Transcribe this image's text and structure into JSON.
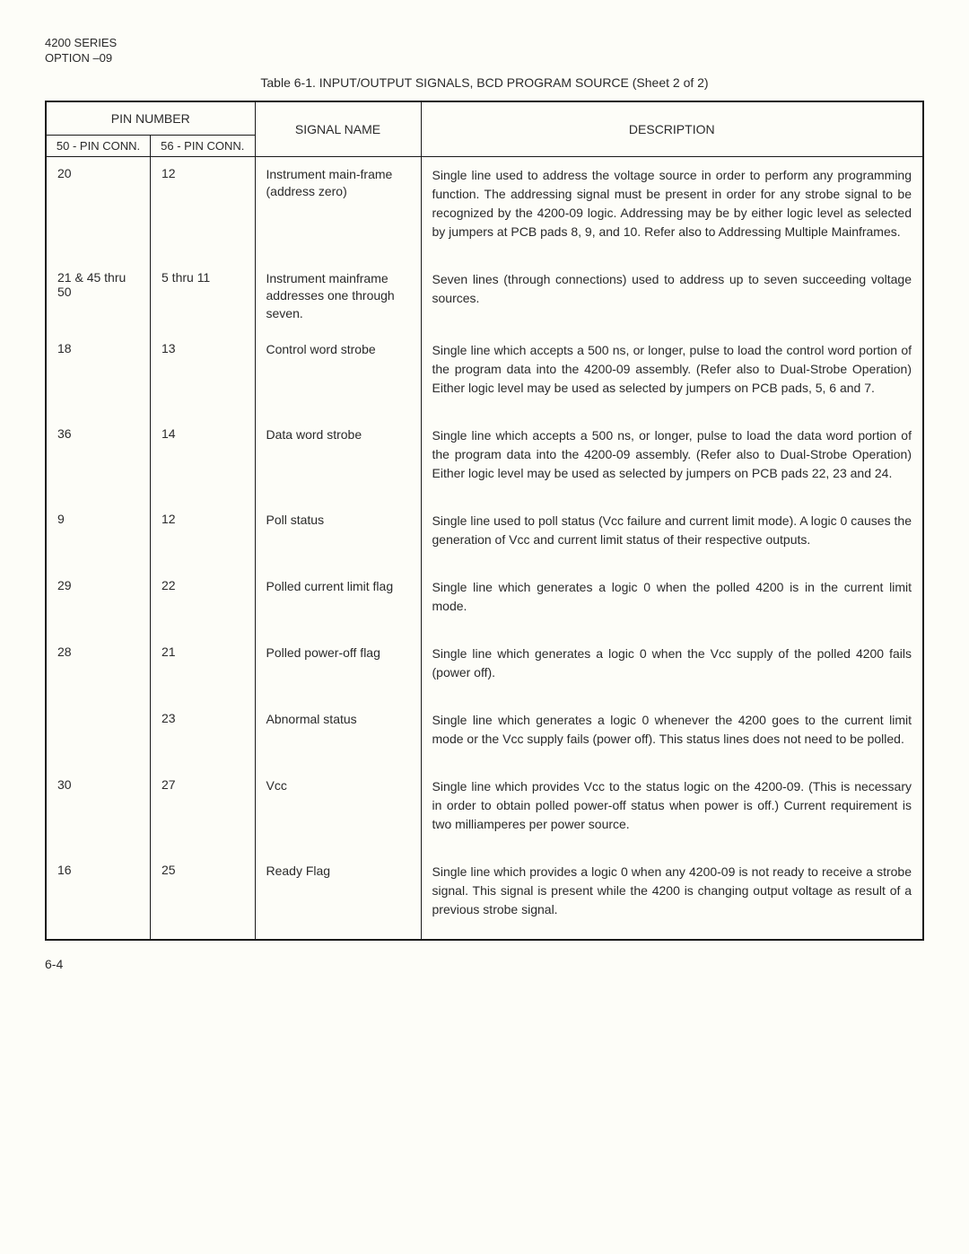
{
  "header": {
    "line1": "4200 SERIES",
    "line2": "OPTION –09"
  },
  "caption": "Table 6-1.   INPUT/OUTPUT SIGNALS, BCD PROGRAM SOURCE (Sheet 2 of 2)",
  "columns": {
    "pin_number": "PIN NUMBER",
    "pin50": "50 - PIN CONN.",
    "pin56": "56 - PIN CONN.",
    "signal": "SIGNAL NAME",
    "desc": "DESCRIPTION"
  },
  "rows": [
    {
      "pin50": "20",
      "pin56": "12",
      "signal": "Instrument main-frame (address zero)",
      "desc": "Single line used to address the voltage source in order to perform any programming function. The addressing signal must be present in order for any strobe signal to be recognized by the 4200-09 logic. Addressing may be by either logic level as selected by jumpers at PCB pads 8, 9, and 10.      Refer also to Addressing Multiple Mainframes."
    },
    {
      "pin50": "21 & 45 thru 50",
      "pin56": "5 thru 11",
      "signal": "Instrument mainframe addresses one through seven.",
      "desc": "Seven lines (through connections) used to address up to seven succeeding voltage sources."
    },
    {
      "pin50": "18",
      "pin56": "13",
      "signal": "Control word strobe",
      "desc": "Single line which accepts a 500 ns, or longer, pulse to load the control word portion of the program data into the 4200-09 assembly.  (Refer also to Dual-Strobe Operation)    Either logic level may be used as selected by jumpers on PCB pads, 5, 6 and 7."
    },
    {
      "pin50": "36",
      "pin56": "14",
      "signal": "Data word strobe",
      "desc": "Single line which accepts a 500 ns, or longer, pulse to load the data word portion of the program data into the 4200-09 assembly.    (Refer also to Dual-Strobe Operation) Either logic level may be used as selected by jumpers on PCB pads 22, 23 and 24."
    },
    {
      "pin50": "9",
      "pin56": "12",
      "signal": "Poll status",
      "desc": "Single line used to poll status (Vcc failure and current limit mode).  A logic 0 causes the generation of Vcc and current limit status of their respective outputs."
    },
    {
      "pin50": "29",
      "pin56": "22",
      "signal": "Polled current limit flag",
      "desc": "Single line which generates a logic 0 when the polled 4200 is in the current limit mode."
    },
    {
      "pin50": "28",
      "pin56": "21",
      "signal": "Polled power-off flag",
      "desc": "Single line which generates a logic 0 when the Vcc supply of the polled 4200 fails (power off)."
    },
    {
      "pin50": "",
      "pin56": "23",
      "signal": "Abnormal status",
      "desc": "Single line which generates a logic 0 whenever the 4200 goes to the current limit mode or the Vcc supply fails (power off).  This status lines does not need to be polled."
    },
    {
      "pin50": "30",
      "pin56": "27",
      "signal": "Vcc",
      "desc": "Single line which provides Vcc to the status logic on the 4200-09.  (This is necessary in order to obtain polled power-off status when power is off.)  Current requirement is two milliamperes per power source."
    },
    {
      "pin50": "16",
      "pin56": "25",
      "signal": "Ready Flag",
      "desc": "Single line which provides a logic 0 when any 4200-09 is not ready to receive a strobe signal.  This signal is present while the 4200 is changing output voltage as result of a previous strobe signal."
    }
  ],
  "footer": "6-4"
}
